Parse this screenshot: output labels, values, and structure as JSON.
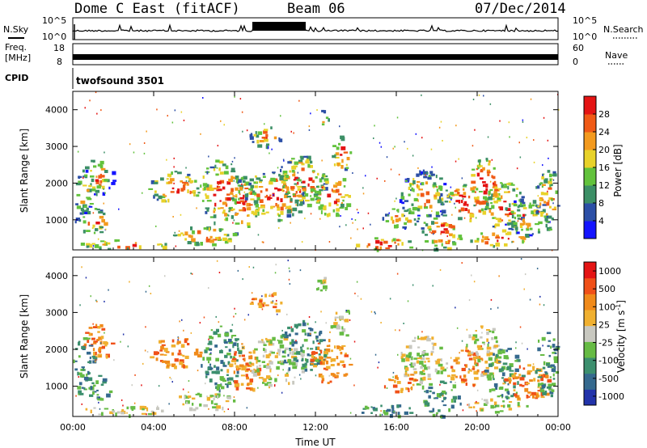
{
  "header": {
    "station": "Dome C East (fitACF)",
    "beam": "Beam 06",
    "date": "07/Dec/2014"
  },
  "top_panels": {
    "nsky_label": "N.Sky",
    "nsky_ticks": [
      "10^5",
      "10^0"
    ],
    "nsearch_label": "N.Search",
    "nsearch_ticks": [
      "10^5",
      "10^0"
    ],
    "freq_label_1": "Freq.",
    "freq_label_2": "[MHz]",
    "freq_ticks": [
      "18",
      "8"
    ],
    "nave_label": "Nave",
    "nave_ticks": [
      "60",
      "0"
    ],
    "cpid_label": "CPID",
    "cpid_value": "twofsound 3501"
  },
  "colors": {
    "power": [
      "#1414ff",
      "#2c4fa6",
      "#3c8f66",
      "#62c23c",
      "#e8d22a",
      "#f39a1e",
      "#f05a16",
      "#e41414"
    ],
    "velocity": [
      "#2233aa",
      "#35698e",
      "#3c8f6e",
      "#66bb44",
      "#c8c8c0",
      "#f0b030",
      "#f08a1a",
      "#f05018",
      "#e41414"
    ]
  },
  "chart_data": [
    {
      "type": "heatmap",
      "name": "power",
      "ylabel": "Slant Range [km]",
      "xlabel": "Time UT",
      "x_ticks": [
        "00:00",
        "04:00",
        "08:00",
        "12:00",
        "16:00",
        "20:00",
        "00:00"
      ],
      "y_ticks": [
        1000,
        2000,
        3000,
        4000
      ],
      "ylim": [
        180,
        4500
      ],
      "colorbar_label": "Power [dB]",
      "colorbar_ticks": [
        "4",
        "8",
        "12",
        "16",
        "20",
        "24",
        "28"
      ],
      "colorbar_range": [
        0,
        32
      ]
    },
    {
      "type": "heatmap",
      "name": "velocity",
      "ylabel": "Slant Range [km]",
      "xlabel": "Time UT",
      "x_ticks": [
        "00:00",
        "04:00",
        "08:00",
        "12:00",
        "16:00",
        "20:00",
        "00:00"
      ],
      "y_ticks": [
        1000,
        2000,
        3000,
        4000
      ],
      "ylim": [
        180,
        4500
      ],
      "colorbar_label": "Velocity [m s",
      "colorbar_label_sup": "-1",
      "colorbar_label_end": "]",
      "colorbar_ticks": [
        "1000",
        "500",
        "100",
        "25",
        "-25",
        "-100",
        "-500",
        "-1000"
      ]
    }
  ]
}
